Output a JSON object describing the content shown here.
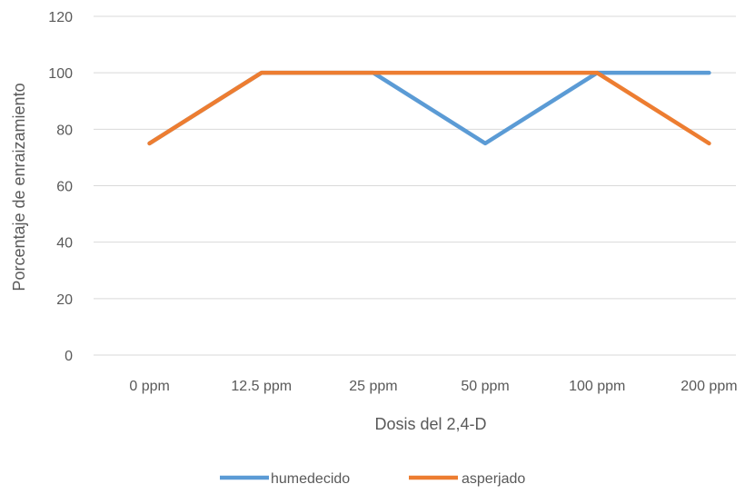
{
  "chart_data": {
    "type": "line",
    "categories": [
      "0 ppm",
      "12.5 ppm",
      "25 ppm",
      "50 ppm",
      "100 ppm",
      "200 ppm"
    ],
    "series": [
      {
        "name": "humedecido",
        "values": [
          75,
          100,
          100,
          75,
          100,
          100
        ],
        "color": "#5b9bd5"
      },
      {
        "name": "asperjado",
        "values": [
          75,
          100,
          100,
          100,
          100,
          75
        ],
        "color": "#ed7d31"
      }
    ],
    "title": "",
    "xlabel": "Dosis del 2,4-D",
    "ylabel": "Porcentaje de enraizamiento",
    "ylim": [
      0,
      120
    ],
    "yticks": [
      0,
      20,
      40,
      60,
      80,
      100,
      120
    ],
    "grid": true,
    "legend_position": "bottom"
  }
}
